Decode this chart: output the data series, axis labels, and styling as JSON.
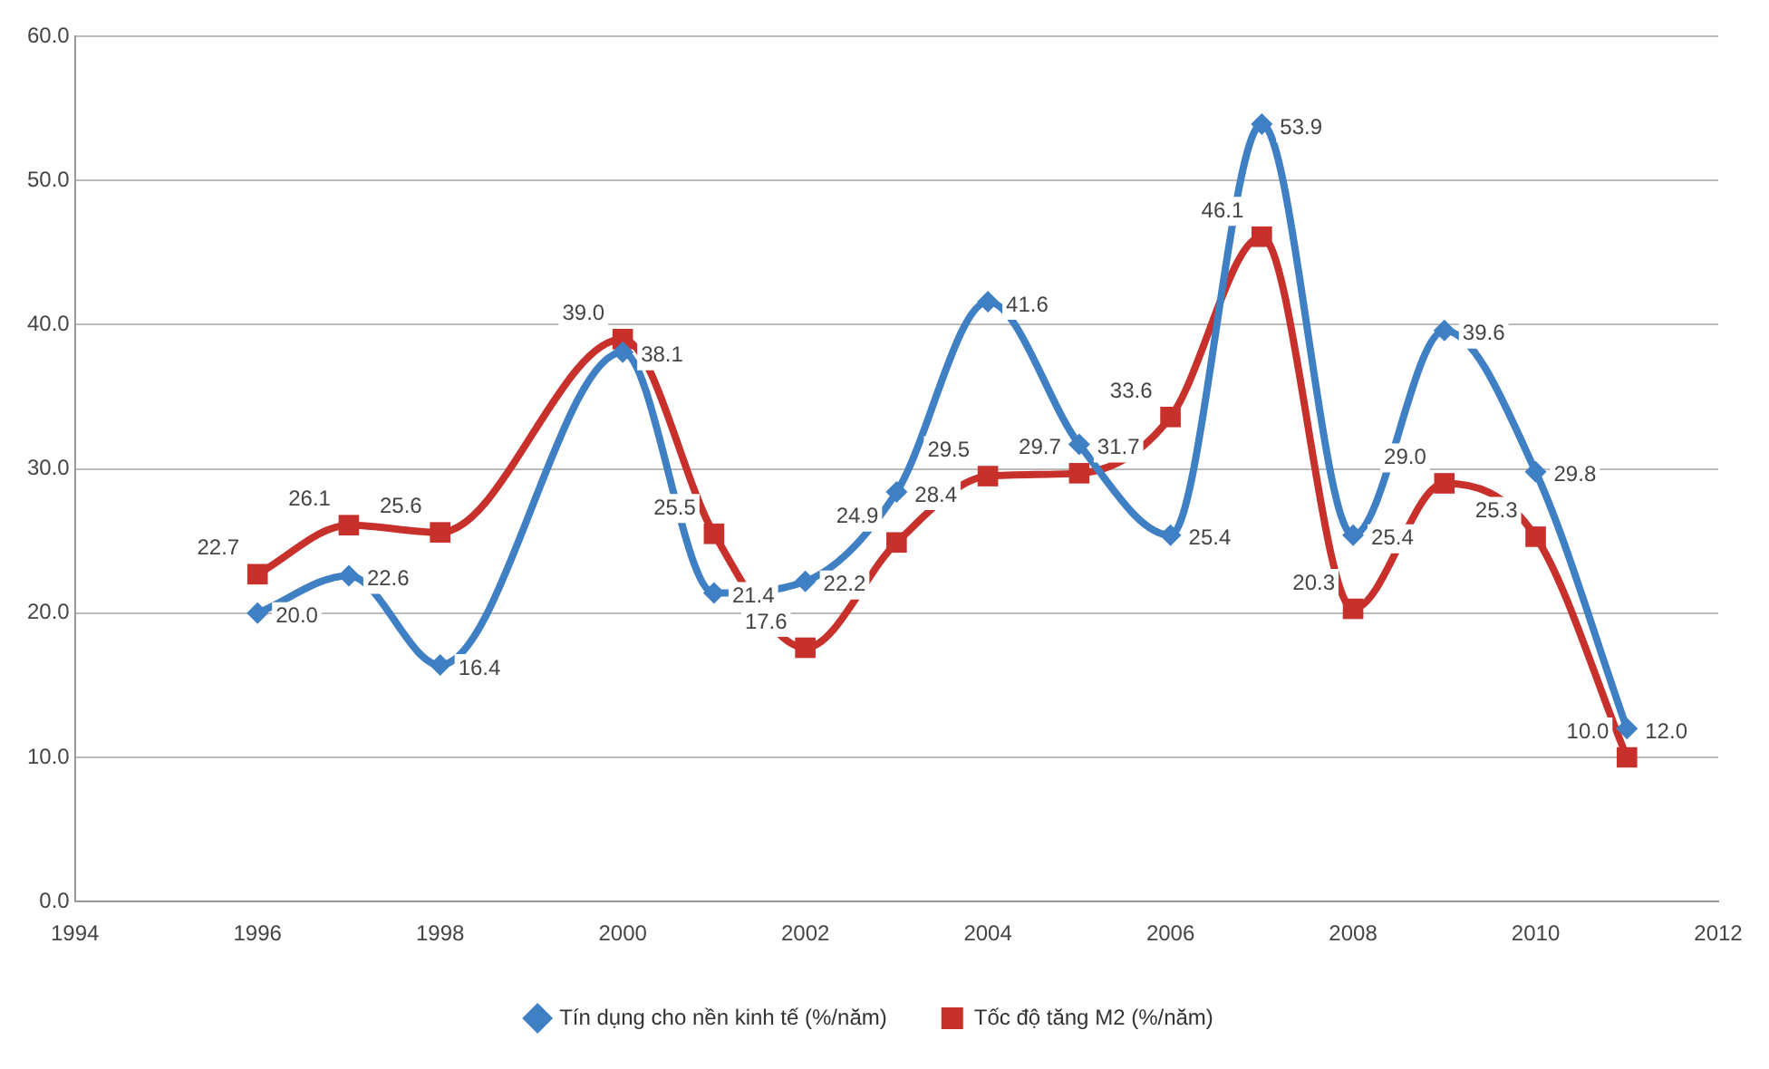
{
  "chart_data": {
    "type": "line",
    "x": [
      1996,
      1997,
      1998,
      2000,
      2001,
      2002,
      2003,
      2004,
      2005,
      2006,
      2007,
      2008,
      2009,
      2010,
      2011
    ],
    "series": [
      {
        "name": "Tín dụng cho nền kinh tế (%/năm)",
        "color": "#3f7fc4",
        "marker": "diamond",
        "values": [
          20.0,
          22.6,
          16.4,
          38.1,
          21.4,
          22.2,
          28.4,
          41.6,
          31.7,
          25.4,
          53.9,
          25.4,
          39.6,
          29.8,
          12.0
        ],
        "value_labels": [
          "20.0",
          "22.6",
          "16.4",
          "38.1",
          "21.4",
          "22.2",
          "28.4",
          "41.6",
          "31.7",
          "25.4",
          "53.9",
          "25.4",
          "39.6",
          "29.8",
          "12.0"
        ]
      },
      {
        "name": "Tốc độ tăng M2 (%/năm)",
        "color": "#c8302c",
        "marker": "square",
        "values": [
          22.7,
          26.1,
          25.6,
          39.0,
          25.5,
          17.6,
          24.9,
          29.5,
          29.7,
          33.6,
          46.1,
          20.3,
          29.0,
          25.3,
          10.0
        ],
        "value_labels": [
          "22.7",
          "26.1",
          "25.6",
          "39.0",
          "25.5",
          "17.6",
          "24.9",
          "29.5",
          "29.7",
          "33.6",
          "46.1",
          "20.3",
          "29.0",
          "25.3",
          "10.0"
        ]
      }
    ],
    "xlim": [
      1994,
      2012
    ],
    "xticks": [
      1994,
      1996,
      1998,
      2000,
      2002,
      2004,
      2006,
      2008,
      2010,
      2012
    ],
    "ylim": [
      0,
      60
    ],
    "yticks": [
      {
        "value": 0,
        "label": "0.0"
      },
      {
        "value": 10,
        "label": "10.0"
      },
      {
        "value": 20,
        "label": "20.0"
      },
      {
        "value": 30,
        "label": "30.0"
      },
      {
        "value": 40,
        "label": "40.0"
      },
      {
        "value": 50,
        "label": "50.0"
      },
      {
        "value": 60,
        "label": "60.0"
      }
    ],
    "grid": "y",
    "legend": "bottom"
  }
}
